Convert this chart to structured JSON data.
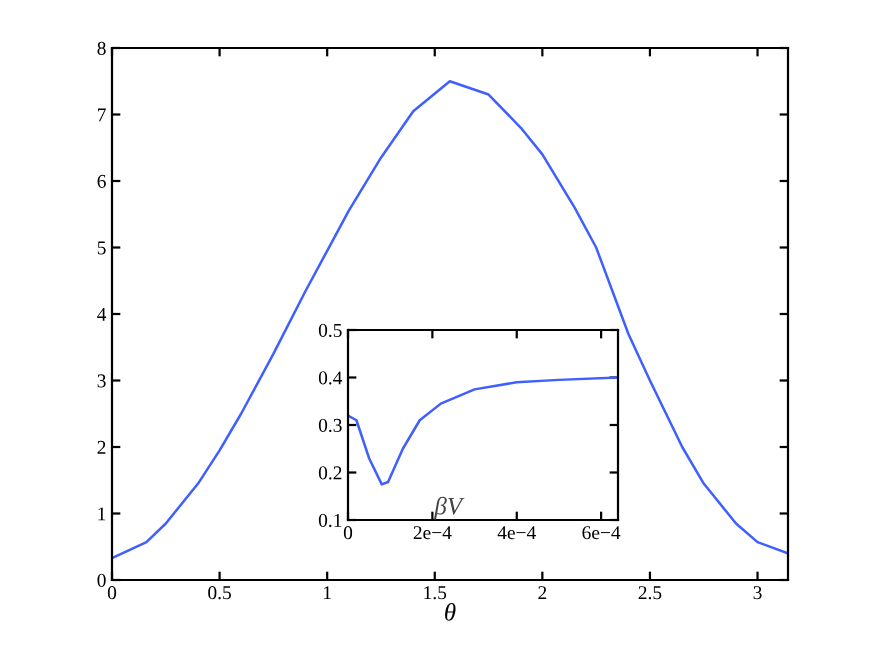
{
  "chart_data": [
    {
      "type": "line",
      "xlabel": "θ",
      "xlim": [
        0,
        3.1416
      ],
      "ylim": [
        0,
        8
      ],
      "xticks": [
        0,
        0.5,
        1,
        1.5,
        2,
        2.5,
        3
      ],
      "yticks": [
        0,
        1,
        2,
        3,
        4,
        5,
        6,
        7,
        8
      ],
      "x": [
        0,
        0.16,
        0.25,
        0.4,
        0.5,
        0.6,
        0.75,
        0.9,
        1.0,
        1.1,
        1.25,
        1.4,
        1.57,
        1.75,
        1.9,
        2.0,
        2.15,
        2.25,
        2.4,
        2.5,
        2.65,
        2.75,
        2.9,
        3.0,
        3.1416
      ],
      "series": [
        {
          "color": "#3f5fff",
          "values": [
            0.33,
            0.57,
            0.85,
            1.45,
            1.95,
            2.5,
            3.4,
            4.35,
            4.95,
            5.55,
            6.35,
            7.05,
            7.5,
            7.3,
            6.8,
            6.4,
            5.6,
            5.0,
            3.7,
            3.0,
            2.0,
            1.45,
            0.85,
            0.57,
            0.4
          ]
        }
      ]
    },
    {
      "type": "line",
      "annotations": [
        "βV"
      ],
      "xlim": [
        0,
        0.00064
      ],
      "ylim": [
        0.1,
        0.5
      ],
      "xticks": [
        0,
        {
          "value": 0.0002,
          "label": "2e−4"
        },
        {
          "value": 0.0004,
          "label": "4e−4"
        },
        {
          "value": 0.0006,
          "label": "6e−4"
        }
      ],
      "yticks": [
        0.1,
        0.2,
        0.3,
        0.4,
        0.5
      ],
      "x": [
        0,
        2e-05,
        5e-05,
        8e-05,
        9.5e-05,
        0.00013,
        0.00017,
        0.00022,
        0.0003,
        0.0004,
        0.0005,
        0.00064
      ],
      "series": [
        {
          "color": "#3f5fff",
          "values": [
            0.32,
            0.31,
            0.23,
            0.175,
            0.18,
            0.25,
            0.31,
            0.345,
            0.375,
            0.39,
            0.395,
            0.4
          ]
        }
      ]
    }
  ]
}
